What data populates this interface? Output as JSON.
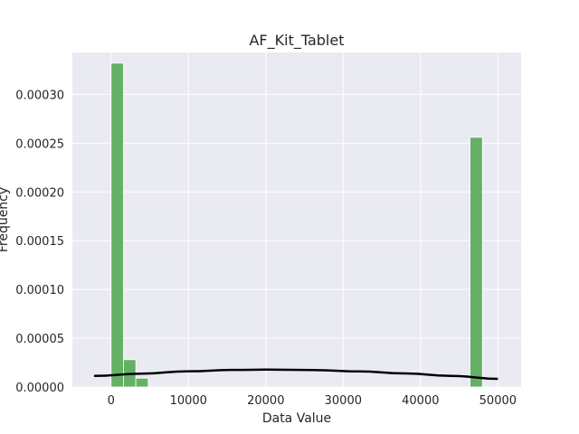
{
  "chart_data": {
    "type": "bar",
    "title": "AF_Kit_Tablet",
    "xlabel": "Data Value",
    "ylabel": "Frequency",
    "xlim": [
      -5000,
      53000
    ],
    "ylim": [
      0,
      0.000343
    ],
    "xticks": [
      0,
      10000,
      20000,
      30000,
      40000,
      50000
    ],
    "xtick_labels": [
      "0",
      "10000",
      "20000",
      "30000",
      "40000",
      "50000"
    ],
    "yticks": [
      0,
      5e-05,
      0.0001,
      0.00015,
      0.0002,
      0.00025,
      0.0003
    ],
    "ytick_labels": [
      "0.00000",
      "0.00005",
      "0.00010",
      "0.00015",
      "0.00020",
      "0.00025",
      "0.00030"
    ],
    "grid": true,
    "bins": [
      {
        "x0": 0,
        "x1": 1600,
        "value": 0.000332
      },
      {
        "x0": 1600,
        "x1": 3200,
        "value": 2.8e-05
      },
      {
        "x0": 3200,
        "x1": 4800,
        "value": 9e-06
      },
      {
        "x0": 46400,
        "x1": 48000,
        "value": 0.000256
      }
    ],
    "density_curve": {
      "x": [
        -2200,
        4000,
        10000,
        16000,
        20000,
        26000,
        32000,
        38000,
        44000,
        50000
      ],
      "y": [
        1.13e-05,
        1.37e-05,
        1.61e-05,
        1.75e-05,
        1.78e-05,
        1.74e-05,
        1.6e-05,
        1.39e-05,
        1.13e-05,
        8.4e-06
      ]
    },
    "colors": {
      "bar": "#4ca64c",
      "bar_edge": "#ffffff",
      "curve": "#000000",
      "plot_bg": "#eaeaf2",
      "grid": "#ffffff"
    }
  }
}
